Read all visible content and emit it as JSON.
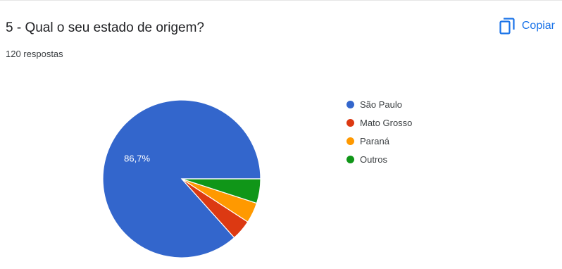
{
  "question": {
    "title": "5 - Qual o seu estado de origem?",
    "responses": "120 respostas"
  },
  "copy_button": {
    "label": "Copiar",
    "icon": "copy-icon",
    "color": "#1a73e8"
  },
  "chart_data": {
    "type": "pie",
    "categories": [
      "São Paulo",
      "Mato Grosso",
      "Paraná",
      "Outros"
    ],
    "values": [
      86.7,
      4.2,
      4.2,
      5.0
    ],
    "colors": [
      "#3366cc",
      "#dc3912",
      "#ff9900",
      "#109618"
    ],
    "slice_labels": [
      "86,7%",
      "",
      "",
      ""
    ],
    "legend": {
      "placement": "right",
      "entries": [
        "São Paulo",
        "Mato Grosso",
        "Paraná",
        "Outros"
      ]
    }
  }
}
